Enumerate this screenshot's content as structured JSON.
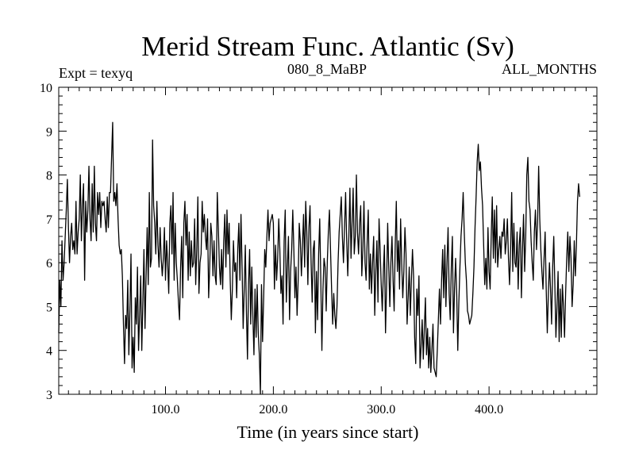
{
  "chart_data": {
    "type": "line",
    "title": "Merid Stream Func. Atlantic (Sv)",
    "subtitle_left": "Expt = texyq",
    "subtitle_center": "080_8_MaBP",
    "subtitle_right": "ALL_MONTHS",
    "xlabel": "Time (in years since start)",
    "ylabel": "",
    "xlim": [
      1,
      500
    ],
    "ylim": [
      3,
      10
    ],
    "x_ticks": [
      100,
      200,
      300,
      400
    ],
    "x_tick_labels": [
      "100.0",
      "200.0",
      "300.0",
      "400.0"
    ],
    "y_ticks": [
      3,
      4,
      5,
      6,
      7,
      8,
      9,
      10
    ],
    "y_tick_labels": [
      "3",
      "4",
      "5",
      "6",
      "7",
      "8",
      "9",
      "10"
    ],
    "series": [
      {
        "x_start": 1,
        "x_step": 1,
        "values": [
          4.4,
          5.6,
          5.0,
          6.5,
          5.6,
          6.0,
          6.6,
          7.2,
          7.9,
          6.8,
          6.0,
          6.6,
          6.9,
          6.3,
          6.5,
          6.2,
          7.4,
          6.2,
          6.7,
          7.0,
          8.0,
          6.5,
          7.3,
          7.8,
          5.6,
          7.4,
          6.7,
          7.2,
          8.2,
          7.0,
          6.5,
          7.8,
          6.7,
          8.2,
          6.9,
          6.5,
          7.6,
          7.1,
          7.6,
          6.8,
          7.4,
          7.3,
          7.4,
          7.0,
          6.7,
          7.5,
          6.8,
          7.6,
          7.6,
          8.4,
          9.2,
          7.4,
          7.6,
          7.3,
          7.8,
          7.0,
          6.4,
          6.2,
          6.3,
          5.7,
          4.6,
          3.7,
          4.8,
          4.5,
          5.6,
          3.9,
          4.9,
          6.2,
          3.6,
          4.3,
          3.5,
          5.2,
          4.6,
          5.9,
          4.0,
          4.8,
          5.7,
          4.0,
          5.1,
          6.3,
          4.5,
          5.7,
          6.8,
          5.5,
          7.6,
          5.9,
          6.1,
          8.8,
          7.3,
          6.9,
          6.2,
          7.4,
          6.4,
          5.9,
          6.8,
          6.1,
          5.7,
          6.1,
          6.8,
          5.6,
          6.5,
          6.0,
          5.3,
          6.9,
          7.3,
          6.2,
          7.6,
          5.6,
          6.9,
          6.0,
          5.6,
          5.1,
          4.7,
          5.9,
          6.6,
          5.2,
          6.9,
          7.4,
          6.4,
          7.1,
          5.6,
          6.7,
          5.7,
          6.5,
          5.9,
          6.0,
          7.0,
          5.5,
          6.3,
          7.5,
          5.3,
          6.0,
          6.2,
          7.4,
          6.7,
          7.1,
          6.6,
          6.3,
          7.0,
          5.2,
          5.9,
          6.9,
          6.6,
          5.7,
          6.5,
          5.7,
          5.5,
          7.6,
          6.8,
          5.9,
          5.5,
          6.3,
          5.4,
          6.5,
          7.1,
          5.9,
          7.2,
          6.2,
          6.9,
          5.6,
          4.7,
          5.4,
          6.5,
          5.8,
          6.0,
          5.2,
          6.3,
          6.9,
          5.6,
          7.1,
          5.9,
          4.5,
          5.4,
          6.4,
          4.9,
          3.8,
          5.5,
          6.3,
          4.6,
          5.9,
          4.8,
          3.9,
          5.4,
          4.3,
          5.5,
          4.4,
          3.9,
          3.0,
          5.5,
          4.2,
          5.2,
          6.3,
          5.9,
          6.6,
          7.2,
          6.5,
          6.9,
          7.0,
          7.1,
          6.9,
          5.4,
          6.4,
          5.6,
          6.1,
          7.0,
          6.3,
          5.3,
          5.7,
          4.6,
          6.5,
          7.2,
          5.1,
          5.9,
          6.6,
          4.7,
          5.8,
          6.3,
          7.2,
          6.3,
          5.2,
          5.9,
          4.8,
          5.6,
          6.9,
          6.5,
          5.7,
          6.4,
          7.1,
          5.9,
          7.4,
          6.7,
          5.5,
          6.8,
          7.3,
          6.0,
          5.1,
          6.3,
          6.5,
          4.4,
          5.8,
          4.7,
          6.2,
          7.0,
          5.6,
          4.0,
          5.4,
          6.1,
          5.9,
          4.9,
          6.0,
          6.7,
          7.2,
          6.3,
          5.4,
          4.6,
          5.3,
          4.8,
          4.5,
          5.0,
          6.0,
          6.7,
          7.1,
          7.5,
          6.6,
          6.0,
          6.8,
          7.6,
          6.5,
          5.7,
          6.6,
          7.7,
          6.1,
          6.9,
          7.7,
          6.2,
          6.6,
          8.0,
          6.7,
          6.2,
          6.9,
          7.3,
          5.7,
          6.3,
          7.4,
          6.0,
          5.6,
          6.5,
          7.2,
          5.4,
          6.2,
          5.3,
          6.0,
          6.6,
          4.8,
          5.8,
          6.5,
          5.1,
          7.0,
          6.3,
          5.5,
          4.9,
          5.8,
          6.4,
          4.4,
          5.5,
          6.9,
          5.9,
          5.0,
          6.0,
          6.6,
          5.6,
          4.9,
          6.4,
          7.4,
          5.8,
          6.5,
          5.4,
          7.0,
          6.0,
          5.2,
          5.8,
          6.8,
          6.2,
          4.6,
          5.2,
          5.9,
          4.8,
          5.6,
          6.3,
          5.7,
          4.3,
          3.7,
          5.4,
          4.8,
          5.7,
          3.6,
          4.1,
          4.7,
          3.8,
          4.5,
          5.2,
          3.9,
          4.5,
          3.6,
          4.3,
          3.5,
          4.0,
          4.6,
          3.6,
          3.5,
          3.4,
          4.0,
          4.7,
          5.4,
          4.6,
          5.6,
          6.3,
          5.2,
          6.4,
          5.0,
          6.0,
          6.8,
          5.3,
          4.7,
          5.9,
          6.6,
          4.4,
          5.4,
          6.1,
          5.3,
          4.0,
          5.1,
          5.9,
          6.6,
          7.0,
          7.6,
          6.7,
          6.0,
          5.6,
          4.9,
          4.8,
          4.6,
          4.7,
          4.8,
          5.3,
          5.9,
          6.8,
          7.5,
          8.3,
          8.7,
          8.1,
          8.3,
          7.7,
          7.3,
          6.4,
          5.5,
          6.1,
          5.4,
          6.8,
          5.8,
          5.4,
          6.6,
          7.5,
          6.1,
          7.2,
          6.0,
          7.3,
          5.9,
          6.3,
          6.6,
          6.1,
          6.7,
          6.6,
          7.0,
          6.2,
          6.5,
          7.0,
          6.1,
          5.5,
          6.3,
          7.6,
          5.8,
          6.9,
          6.0,
          5.9,
          6.7,
          5.4,
          6.4,
          6.8,
          5.2,
          6.3,
          7.1,
          5.8,
          6.6,
          8.0,
          8.4,
          7.4,
          7.2,
          6.5,
          6.0,
          5.6,
          6.7,
          7.2,
          6.3,
          6.9,
          8.2,
          7.0,
          6.3,
          5.8,
          5.4,
          6.1,
          6.7,
          5.4,
          4.4,
          5.3,
          6.0,
          5.4,
          4.6,
          5.9,
          6.6,
          5.5,
          4.3,
          5.0,
          5.8,
          4.2,
          5.4,
          4.3,
          5.5,
          5.0,
          4.3,
          5.3,
          6.1,
          6.7,
          5.8,
          6.6,
          6.1,
          5.0,
          5.5,
          6.5,
          5.7,
          6.4,
          7.4,
          7.8,
          7.5
        ]
      }
    ]
  }
}
